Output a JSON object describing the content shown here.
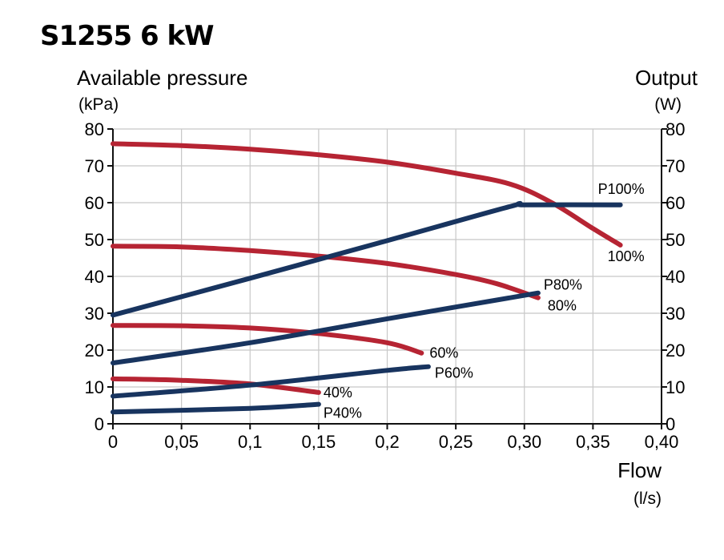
{
  "title": "S1255 6 kW",
  "colors": {
    "pressure": "#b62433",
    "output": "#18345f",
    "grid": "#c8c8c8",
    "axis": "#111111"
  },
  "chart_data": {
    "type": "line",
    "title": "S1255 6 kW",
    "xlabel": "Flow",
    "xunit": "(l/s)",
    "ylabel": "Available pressure",
    "yunit": "(kPa)",
    "y2label": "Output",
    "y2unit": "(W)",
    "xlim": [
      0,
      0.4
    ],
    "ylim": [
      0,
      80
    ],
    "y2lim": [
      0,
      80
    ],
    "grid": true,
    "x_ticks": [
      0,
      0.05,
      0.1,
      0.15,
      0.2,
      0.25,
      0.3,
      0.35,
      0.4
    ],
    "x_tick_labels": [
      "0",
      "0,05",
      "0,1",
      "0,15",
      "0,2",
      "0,25",
      "0,30",
      "0,35",
      "0,40"
    ],
    "y_ticks": [
      0,
      10,
      20,
      30,
      40,
      50,
      60,
      70,
      80
    ],
    "y_tick_labels": [
      "0",
      "10",
      "20",
      "30",
      "40",
      "50",
      "60",
      "70",
      "80"
    ],
    "y2_tick_labels": [
      "0",
      "10",
      "20",
      "30",
      "40",
      "50",
      "60",
      "70",
      "80"
    ],
    "series": [
      {
        "name": "100%",
        "axis": "pressure",
        "points": [
          [
            0,
            76
          ],
          [
            0.05,
            75.5
          ],
          [
            0.1,
            74.5
          ],
          [
            0.15,
            73
          ],
          [
            0.2,
            71
          ],
          [
            0.25,
            68
          ],
          [
            0.29,
            65
          ],
          [
            0.32,
            60
          ],
          [
            0.35,
            53
          ],
          [
            0.37,
            48.5
          ]
        ]
      },
      {
        "name": "80%",
        "axis": "pressure",
        "points": [
          [
            0,
            48.2
          ],
          [
            0.05,
            48
          ],
          [
            0.1,
            47
          ],
          [
            0.15,
            45.5
          ],
          [
            0.2,
            43.5
          ],
          [
            0.25,
            40.5
          ],
          [
            0.28,
            38
          ],
          [
            0.31,
            34.2
          ]
        ]
      },
      {
        "name": "60%",
        "axis": "pressure",
        "points": [
          [
            0,
            26.7
          ],
          [
            0.05,
            26.6
          ],
          [
            0.1,
            26
          ],
          [
            0.15,
            24.5
          ],
          [
            0.2,
            22
          ],
          [
            0.225,
            19.2
          ]
        ]
      },
      {
        "name": "40%",
        "axis": "pressure",
        "points": [
          [
            0,
            12.2
          ],
          [
            0.05,
            11.8
          ],
          [
            0.1,
            10.8
          ],
          [
            0.15,
            8.5
          ]
        ]
      },
      {
        "name": "P100%",
        "axis": "output",
        "points": [
          [
            0,
            29.5
          ],
          [
            0.1,
            39.5
          ],
          [
            0.2,
            49.7
          ],
          [
            0.29,
            59
          ],
          [
            0.3,
            59.4
          ],
          [
            0.37,
            59.4
          ]
        ]
      },
      {
        "name": "P80%",
        "axis": "output",
        "points": [
          [
            0,
            16.5
          ],
          [
            0.1,
            22
          ],
          [
            0.2,
            28.5
          ],
          [
            0.31,
            35.5
          ]
        ]
      },
      {
        "name": "P60%",
        "axis": "output",
        "points": [
          [
            0,
            7.5
          ],
          [
            0.1,
            10.5
          ],
          [
            0.2,
            14.5
          ],
          [
            0.23,
            15.5
          ]
        ]
      },
      {
        "name": "P40%",
        "axis": "output",
        "points": [
          [
            0,
            3.2
          ],
          [
            0.1,
            4.2
          ],
          [
            0.15,
            5.3
          ]
        ]
      }
    ]
  }
}
